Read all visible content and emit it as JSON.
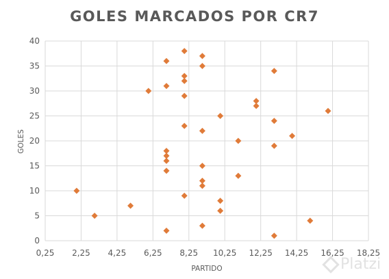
{
  "chart_data": {
    "type": "scatter",
    "title": "GOLES MARCADOS POR CR7",
    "xlabel": "PARTIDO",
    "ylabel": "GOLES",
    "xlim": [
      0.25,
      18.25
    ],
    "ylim": [
      0,
      40
    ],
    "xticks": [
      "0,25",
      "2,25",
      "4,25",
      "6,25",
      "8,25",
      "10,25",
      "12,25",
      "14,25",
      "16,25",
      "18,25"
    ],
    "yticks": [
      "0",
      "5",
      "10",
      "15",
      "20",
      "25",
      "30",
      "35",
      "40"
    ],
    "grid": true,
    "marker": "diamond",
    "color": "#e07b39",
    "points": [
      {
        "x": 2,
        "y": 10
      },
      {
        "x": 3,
        "y": 5
      },
      {
        "x": 5,
        "y": 7
      },
      {
        "x": 6,
        "y": 30
      },
      {
        "x": 7,
        "y": 36
      },
      {
        "x": 7,
        "y": 31
      },
      {
        "x": 7,
        "y": 18
      },
      {
        "x": 7,
        "y": 17
      },
      {
        "x": 7,
        "y": 16
      },
      {
        "x": 7,
        "y": 14
      },
      {
        "x": 7,
        "y": 2
      },
      {
        "x": 8,
        "y": 38
      },
      {
        "x": 8,
        "y": 33
      },
      {
        "x": 8,
        "y": 32
      },
      {
        "x": 8,
        "y": 29
      },
      {
        "x": 8,
        "y": 23
      },
      {
        "x": 8,
        "y": 9
      },
      {
        "x": 9,
        "y": 37
      },
      {
        "x": 9,
        "y": 35
      },
      {
        "x": 9,
        "y": 22
      },
      {
        "x": 9,
        "y": 15
      },
      {
        "x": 9,
        "y": 12
      },
      {
        "x": 9,
        "y": 11
      },
      {
        "x": 9,
        "y": 3
      },
      {
        "x": 10,
        "y": 25
      },
      {
        "x": 10,
        "y": 8
      },
      {
        "x": 10,
        "y": 6
      },
      {
        "x": 11,
        "y": 20
      },
      {
        "x": 11,
        "y": 13
      },
      {
        "x": 12,
        "y": 28
      },
      {
        "x": 12,
        "y": 27
      },
      {
        "x": 13,
        "y": 34
      },
      {
        "x": 13,
        "y": 24
      },
      {
        "x": 13,
        "y": 19
      },
      {
        "x": 13,
        "y": 1
      },
      {
        "x": 14,
        "y": 21
      },
      {
        "x": 15,
        "y": 4
      },
      {
        "x": 16,
        "y": 26
      }
    ]
  },
  "watermark": {
    "text": "Platzi",
    "icon": "platzi-diamond-icon"
  }
}
